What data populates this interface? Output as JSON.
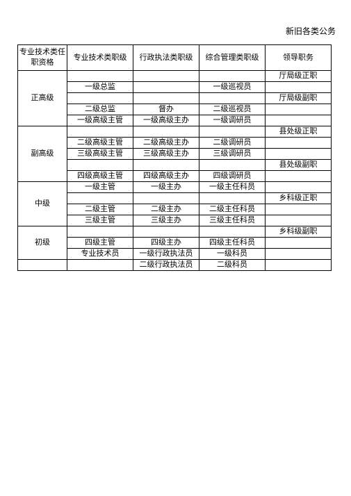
{
  "title": "新旧各类公务",
  "headers": {
    "c0": "专业技术类任职资格",
    "c1": "专业技术类职级",
    "c2": "行政执法类职级",
    "c3": "综合管理类职级",
    "c4": "领导职务"
  },
  "r": {
    "zgj": "正高级",
    "fgj": "副高级",
    "zj": "中级",
    "cj": "初级",
    "r1c4": "厅局级正职",
    "r2c1": "一级总监",
    "r2c3": "一级巡视员",
    "r3c4": "厅局级副职",
    "r4c1": "二级总监",
    "r4c2": "督办",
    "r4c3": "二级巡视员",
    "r5c1": "一级高级主管",
    "r5c2": "一级高级主办",
    "r5c3": "一级调研员",
    "r6c4": "县处级正职",
    "r7c1": "二级高级主管",
    "r7c2": "二级高级主办",
    "r7c3": "二级调研员",
    "r8c1": "三级高级主管",
    "r8c2": "三级高级主办",
    "r8c3": "三级调研员",
    "r9c4": "县处级副职",
    "r10c1": "四级高级主管",
    "r10c2": "四级高级主办",
    "r10c3": "四级调研员",
    "r11c1": "一级主管",
    "r11c2": "一级主办",
    "r11c3": "一级主任科员",
    "r12c4": "乡科级正职",
    "r13c1": "二级主管",
    "r13c2": "二级主办",
    "r13c3": "二级主任科员",
    "r14c1": "三级主管",
    "r14c2": "三级主办",
    "r14c3": "三级主任科员",
    "r15c4": "乡科级副职",
    "r16c1": "四级主管",
    "r16c2": "四级主办",
    "r16c3": "四级主任科员",
    "r17c1": "专业技术员",
    "r17c2": "一级行政执法员",
    "r17c3": "一级科员",
    "r18c2": "二级行政执法员",
    "r18c3": "二级科员"
  }
}
